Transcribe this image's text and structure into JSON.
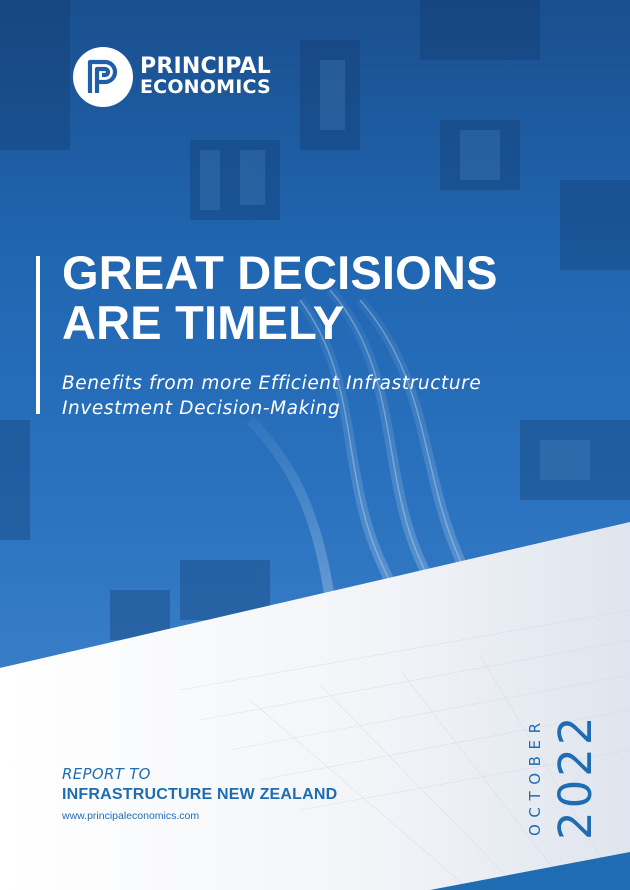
{
  "logo": {
    "line1": "PRINCIPAL",
    "line2": "ECONOMICS",
    "icon": "pe-monogram-logo"
  },
  "title": {
    "line1": "GREAT DECISIONS",
    "line2": "ARE TIMELY"
  },
  "subtitle": {
    "line1": "Benefits from more Efficient Infrastructure",
    "line2": "Investment Decision-Making"
  },
  "report": {
    "report_to": "REPORT TO",
    "client": "INFRASTRUCTURE NEW ZEALAND",
    "website": "www.principaleconomics.com"
  },
  "date": {
    "month": "OCTOBER",
    "year": "2022"
  },
  "colors": {
    "brand_blue": "#1f6cb3",
    "hero_blue": "#1f5fa8",
    "background": "#f3f5f8"
  }
}
